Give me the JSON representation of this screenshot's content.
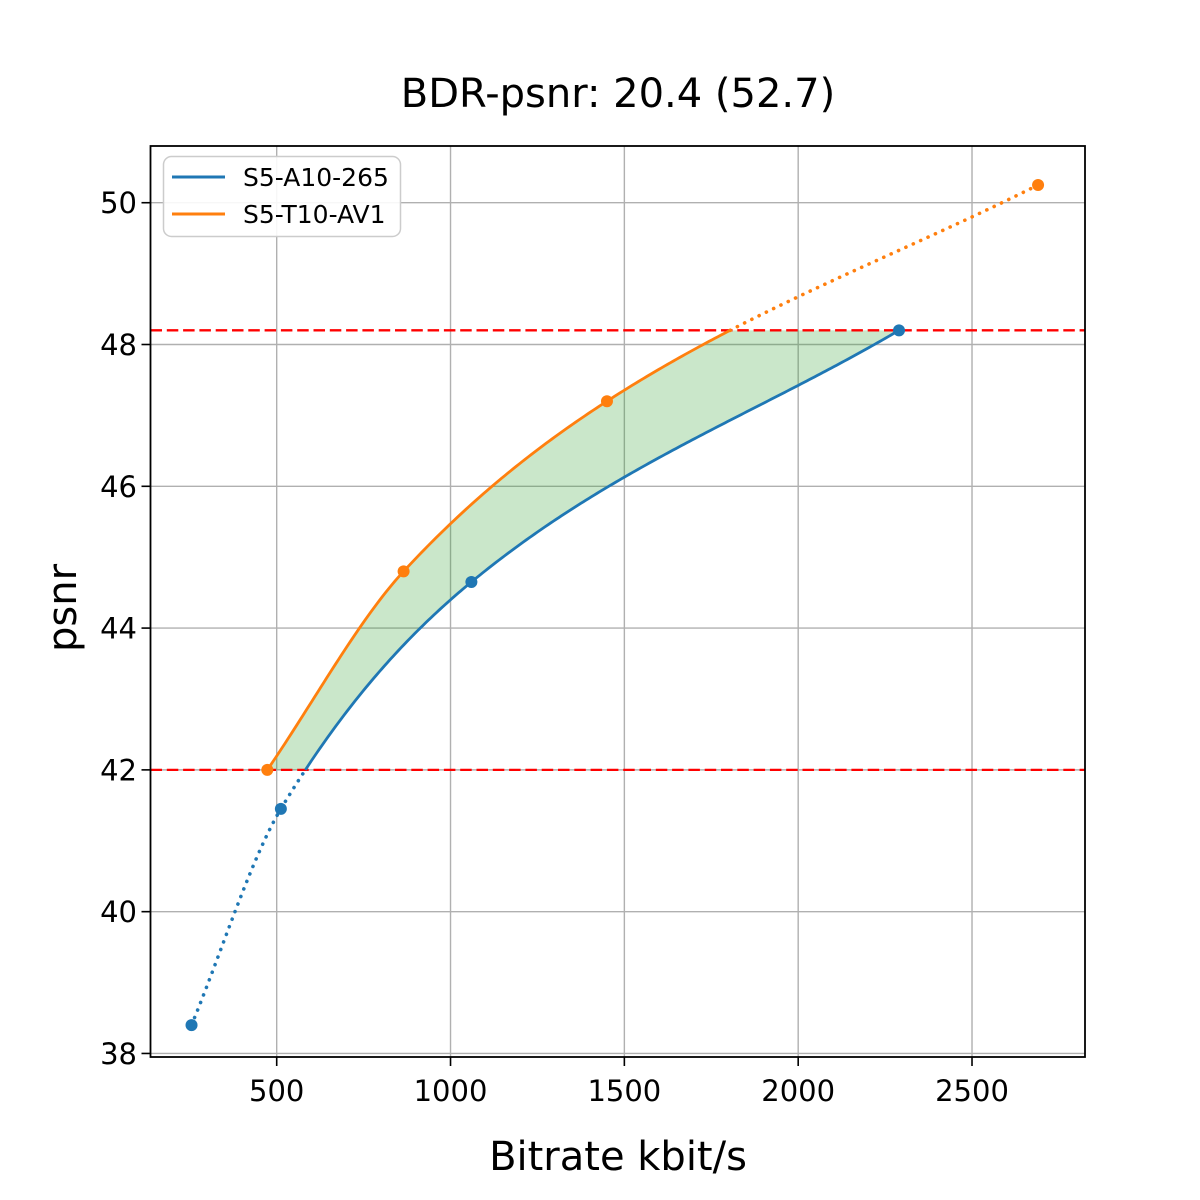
{
  "chart_data": {
    "type": "line",
    "title": "BDR-psnr: 20.4 (52.7)",
    "xlabel": "Bitrate kbit/s",
    "ylabel": "psnr",
    "xlim": [
      137,
      2825
    ],
    "ylim": [
      37.95,
      50.8
    ],
    "xticks": [
      500,
      1000,
      1500,
      2000,
      2500
    ],
    "yticks": [
      38,
      40,
      42,
      44,
      46,
      48,
      50
    ],
    "grid": true,
    "grid_color": "#b0b0b0",
    "axis_color": "#000000",
    "legend_position": "upper-left",
    "series": [
      {
        "name": "S5-A10-265",
        "color": "#1f77b4",
        "points": [
          [
            255,
            38.4
          ],
          [
            512,
            41.45
          ],
          [
            1060,
            44.65
          ],
          [
            2290,
            48.2
          ]
        ]
      },
      {
        "name": "S5-T10-AV1",
        "color": "#ff7f0e",
        "points": [
          [
            473,
            42.0
          ],
          [
            865,
            44.8
          ],
          [
            1450,
            47.2
          ],
          [
            2690,
            50.25
          ]
        ]
      }
    ],
    "reference_lines": {
      "color": "#ff0000",
      "style": "dashed",
      "psnr_values": [
        42.0,
        48.2
      ]
    },
    "shaded_region": {
      "color": "#2ca02c",
      "opacity": 0.25,
      "psnr_range": [
        42.0,
        48.2
      ]
    },
    "line_style_note": "solid inside psnr overlap range, dotted outside"
  }
}
